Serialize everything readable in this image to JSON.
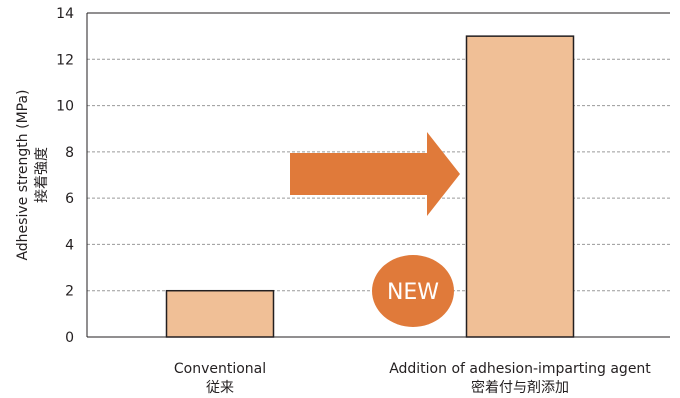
{
  "chart_data": {
    "type": "bar",
    "ylabel": "Adhesive strength (MPa)",
    "ylabel_secondary": "接着強度",
    "categories": [
      {
        "label": "Conventional",
        "label_secondary": "従来"
      },
      {
        "label": "Addition of adhesion-imparting agent",
        "label_secondary": "密着付与剤添加"
      }
    ],
    "values": [
      2,
      13
    ],
    "ylim": [
      0,
      14
    ],
    "yticks": [
      0,
      2,
      4,
      6,
      8,
      10,
      12,
      14
    ],
    "grid": true,
    "bar_color": "#f0bf96",
    "bar_edge_color": "#231f20",
    "annotations": {
      "arrow_color": "#e07a3a",
      "badge_text": "NEW",
      "badge_color": "#e07a3a"
    }
  }
}
